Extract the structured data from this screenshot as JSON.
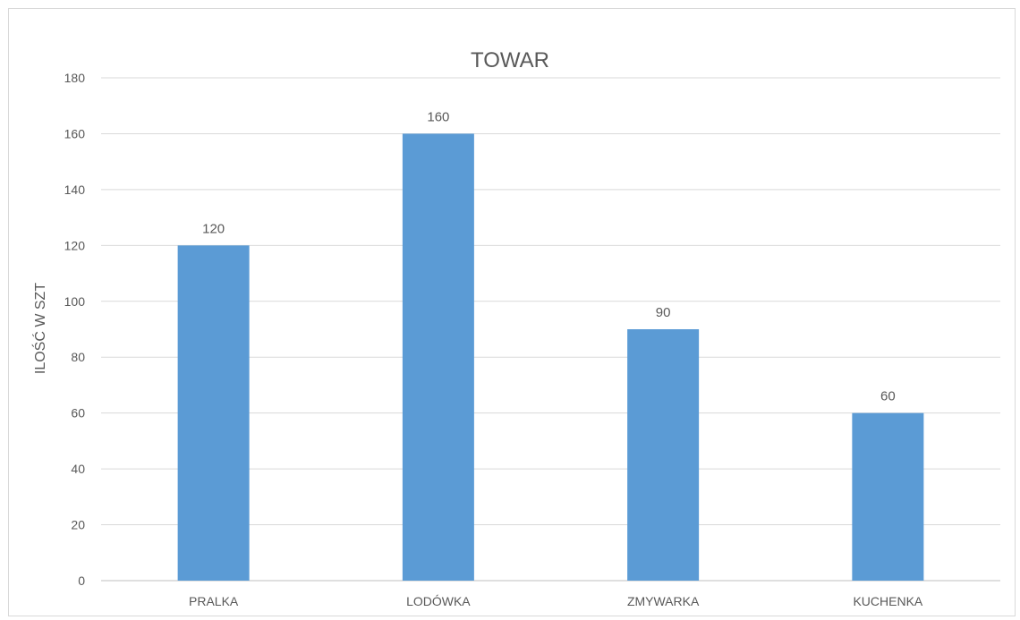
{
  "chart_data": {
    "type": "bar",
    "title": "TOWAR",
    "ylabel": "ILOŚĆ W SZT",
    "xlabel": "",
    "categories": [
      "PRALKA",
      "LODÓWKA",
      "ZMYWARKA",
      "KUCHENKA"
    ],
    "values": [
      120,
      160,
      90,
      60
    ],
    "ylim": [
      0,
      180
    ],
    "yticks": [
      0,
      20,
      40,
      60,
      80,
      100,
      120,
      140,
      160,
      180
    ],
    "grid": true,
    "bar_color": "#5b9bd5",
    "data_labels": true
  }
}
